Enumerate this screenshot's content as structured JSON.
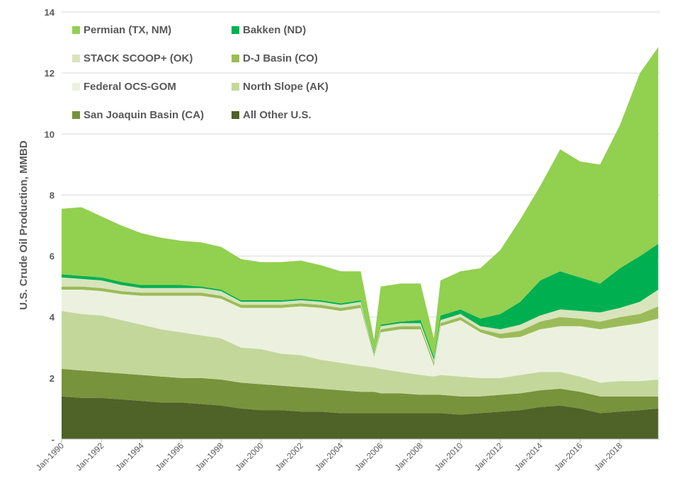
{
  "chart_data": {
    "type": "area",
    "stacked": true,
    "ylabel": "U.S. Crude Oil Production, MMBD",
    "xlabel": "",
    "ylim": [
      0,
      14
    ],
    "yticks": [
      "-",
      "2",
      "4",
      "6",
      "8",
      "10",
      "12",
      "14"
    ],
    "xtick_labels": [
      "Jan-1990",
      "Jan-1992",
      "Jan-1994",
      "Jan-1996",
      "Jan-1998",
      "Jan-2000",
      "Jan-2002",
      "Jan-2004",
      "Jan-2006",
      "Jan-2008",
      "Jan-2010",
      "Jan-2012",
      "Jan-2014",
      "Jan-2016",
      "Jan-2018"
    ],
    "grid": true,
    "legend_position": "top-left",
    "x": [
      "1990-01",
      "1991-01",
      "1992-01",
      "1993-01",
      "1994-01",
      "1995-01",
      "1996-01",
      "1997-01",
      "1998-01",
      "1999-01",
      "2000-01",
      "2001-01",
      "2002-01",
      "2003-01",
      "2004-01",
      "2005-01",
      "2005-09",
      "2006-01",
      "2007-01",
      "2008-01",
      "2008-09",
      "2009-01",
      "2010-01",
      "2011-01",
      "2012-01",
      "2013-01",
      "2014-01",
      "2015-01",
      "2016-01",
      "2017-01",
      "2018-01",
      "2019-01",
      "2019-12"
    ],
    "series": [
      {
        "name": "All Other U.S.",
        "color": "#4F6228",
        "values": [
          1.4,
          1.35,
          1.35,
          1.3,
          1.25,
          1.2,
          1.2,
          1.15,
          1.1,
          1.0,
          0.95,
          0.95,
          0.9,
          0.9,
          0.85,
          0.85,
          0.85,
          0.85,
          0.85,
          0.85,
          0.85,
          0.85,
          0.8,
          0.85,
          0.9,
          0.95,
          1.05,
          1.1,
          1.0,
          0.85,
          0.9,
          0.95,
          1.0
        ]
      },
      {
        "name": "San Joaquin Basin (CA)",
        "color": "#77933C",
        "values": [
          0.9,
          0.9,
          0.85,
          0.85,
          0.85,
          0.85,
          0.8,
          0.85,
          0.85,
          0.85,
          0.85,
          0.8,
          0.8,
          0.75,
          0.75,
          0.7,
          0.7,
          0.65,
          0.65,
          0.6,
          0.6,
          0.6,
          0.6,
          0.55,
          0.55,
          0.55,
          0.55,
          0.55,
          0.55,
          0.55,
          0.5,
          0.45,
          0.4
        ]
      },
      {
        "name": "North Slope (AK)",
        "color": "#C4D79B",
        "values": [
          1.9,
          1.85,
          1.85,
          1.75,
          1.65,
          1.55,
          1.5,
          1.4,
          1.35,
          1.15,
          1.15,
          1.05,
          1.05,
          0.95,
          0.9,
          0.85,
          0.8,
          0.8,
          0.7,
          0.65,
          0.6,
          0.65,
          0.65,
          0.6,
          0.55,
          0.6,
          0.6,
          0.55,
          0.5,
          0.45,
          0.5,
          0.5,
          0.55
        ]
      },
      {
        "name": "Federal OCS-GOM",
        "color": "#EBF1DE",
        "values": [
          0.7,
          0.8,
          0.8,
          0.85,
          0.95,
          1.1,
          1.2,
          1.3,
          1.3,
          1.3,
          1.35,
          1.5,
          1.6,
          1.7,
          1.7,
          1.9,
          0.35,
          1.2,
          1.4,
          1.5,
          0.35,
          1.6,
          1.85,
          1.5,
          1.3,
          1.25,
          1.4,
          1.5,
          1.65,
          1.75,
          1.8,
          1.9,
          2.0
        ]
      },
      {
        "name": "D-J Basin (CO)",
        "color": "#9BBB59",
        "values": [
          0.1,
          0.1,
          0.1,
          0.1,
          0.1,
          0.1,
          0.1,
          0.1,
          0.1,
          0.1,
          0.1,
          0.1,
          0.1,
          0.1,
          0.1,
          0.1,
          0.05,
          0.1,
          0.1,
          0.1,
          0.1,
          0.1,
          0.1,
          0.1,
          0.15,
          0.2,
          0.25,
          0.3,
          0.25,
          0.25,
          0.3,
          0.3,
          0.4
        ]
      },
      {
        "name": "STACK SCOOP+ (OK)",
        "color": "#D8E4BC",
        "values": [
          0.3,
          0.25,
          0.25,
          0.2,
          0.15,
          0.15,
          0.15,
          0.15,
          0.15,
          0.1,
          0.1,
          0.1,
          0.1,
          0.1,
          0.1,
          0.1,
          0.05,
          0.1,
          0.1,
          0.1,
          0.1,
          0.1,
          0.1,
          0.1,
          0.15,
          0.2,
          0.2,
          0.25,
          0.25,
          0.3,
          0.3,
          0.4,
          0.55
        ]
      },
      {
        "name": "Bakken (ND)",
        "color": "#00B050",
        "values": [
          0.1,
          0.1,
          0.1,
          0.1,
          0.1,
          0.1,
          0.1,
          0.05,
          0.05,
          0.05,
          0.05,
          0.05,
          0.05,
          0.05,
          0.05,
          0.05,
          0.05,
          0.05,
          0.05,
          0.1,
          0.1,
          0.15,
          0.15,
          0.25,
          0.5,
          0.75,
          1.15,
          1.25,
          1.1,
          0.95,
          1.3,
          1.5,
          1.5
        ]
      },
      {
        "name": "Permian (TX, NM)",
        "color": "#92D050",
        "values": [
          2.15,
          2.25,
          2.0,
          1.85,
          1.7,
          1.55,
          1.45,
          1.45,
          1.4,
          1.35,
          1.25,
          1.25,
          1.25,
          1.15,
          1.05,
          0.95,
          0.4,
          1.25,
          1.25,
          1.2,
          0.6,
          1.15,
          1.25,
          1.65,
          2.1,
          2.7,
          3.1,
          4.0,
          3.8,
          3.9,
          4.7,
          6.0,
          6.45
        ]
      }
    ],
    "legend_order": [
      "Permian (TX, NM)",
      "Bakken (ND)",
      "STACK SCOOP+ (OK)",
      "D-J Basin (CO)",
      "Federal OCS-GOM",
      "North Slope (AK)",
      "San Joaquin Basin (CA)",
      "All Other U.S."
    ]
  }
}
